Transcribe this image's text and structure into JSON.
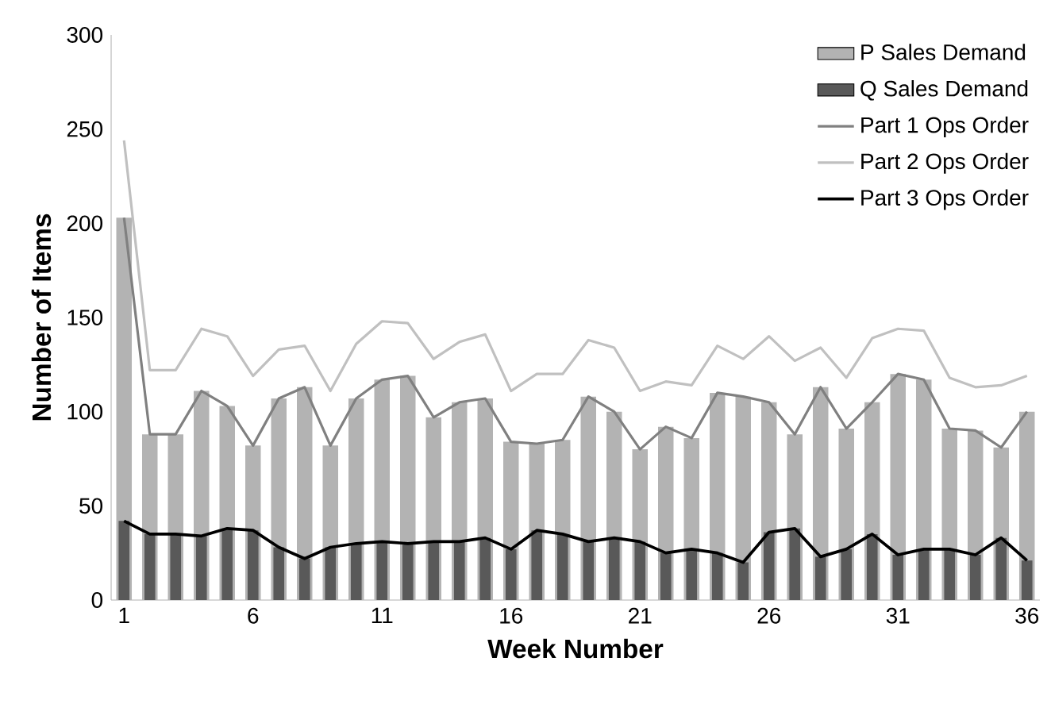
{
  "chart_data": {
    "type": "bar",
    "xlabel": "Week Number",
    "ylabel": "Number of Items",
    "x": [
      1,
      2,
      3,
      4,
      5,
      6,
      7,
      8,
      9,
      10,
      11,
      12,
      13,
      14,
      15,
      16,
      17,
      18,
      19,
      20,
      21,
      22,
      23,
      24,
      25,
      26,
      27,
      28,
      29,
      30,
      31,
      32,
      33,
      34,
      35,
      36
    ],
    "series": [
      {
        "name": "P Sales Demand",
        "color": "#b3b3b3",
        "values": [
          203,
          88,
          88,
          111,
          103,
          82,
          107,
          113,
          82,
          107,
          117,
          119,
          97,
          105,
          107,
          84,
          83,
          85,
          108,
          100,
          80,
          92,
          86,
          110,
          108,
          105,
          88,
          113,
          91,
          105,
          120,
          117,
          91,
          90,
          81,
          100
        ]
      },
      {
        "name": "Q Sales Demand",
        "color": "#595959",
        "values": [
          42,
          35,
          35,
          34,
          38,
          37,
          28,
          22,
          28,
          30,
          31,
          30,
          31,
          31,
          33,
          27,
          37,
          35,
          31,
          33,
          31,
          25,
          27,
          25,
          20,
          36,
          38,
          23,
          27,
          35,
          24,
          27,
          27,
          24,
          33,
          21
        ]
      },
      {
        "name": "Part 1 Ops Order",
        "type": "line",
        "color": "#808080",
        "values": [
          203,
          88,
          88,
          111,
          103,
          82,
          107,
          113,
          82,
          107,
          117,
          119,
          97,
          105,
          107,
          84,
          83,
          85,
          108,
          100,
          80,
          92,
          86,
          110,
          108,
          105,
          88,
          113,
          91,
          105,
          120,
          117,
          91,
          90,
          81,
          100
        ]
      },
      {
        "name": "Part 2 Ops Order",
        "type": "line",
        "color": "#c0c0c0",
        "values": [
          244,
          122,
          122,
          144,
          140,
          119,
          133,
          135,
          111,
          136,
          148,
          147,
          128,
          137,
          141,
          111,
          120,
          120,
          138,
          134,
          111,
          116,
          114,
          135,
          128,
          140,
          127,
          134,
          118,
          139,
          144,
          143,
          118,
          113,
          114,
          119
        ]
      },
      {
        "name": "Part 3 Ops Order",
        "type": "line",
        "color": "#000000",
        "values": [
          42,
          35,
          35,
          34,
          38,
          37,
          28,
          22,
          28,
          30,
          31,
          30,
          31,
          31,
          33,
          27,
          37,
          35,
          31,
          33,
          31,
          25,
          27,
          25,
          20,
          36,
          38,
          23,
          27,
          35,
          24,
          27,
          27,
          24,
          33,
          21
        ]
      }
    ],
    "xlim": [
      0.5,
      36.5
    ],
    "ylim": [
      0,
      300
    ],
    "xticks": [
      1,
      6,
      11,
      16,
      21,
      26,
      31,
      36
    ],
    "yticks": [
      0,
      50,
      100,
      150,
      200,
      250,
      300
    ],
    "legend": "top right"
  }
}
